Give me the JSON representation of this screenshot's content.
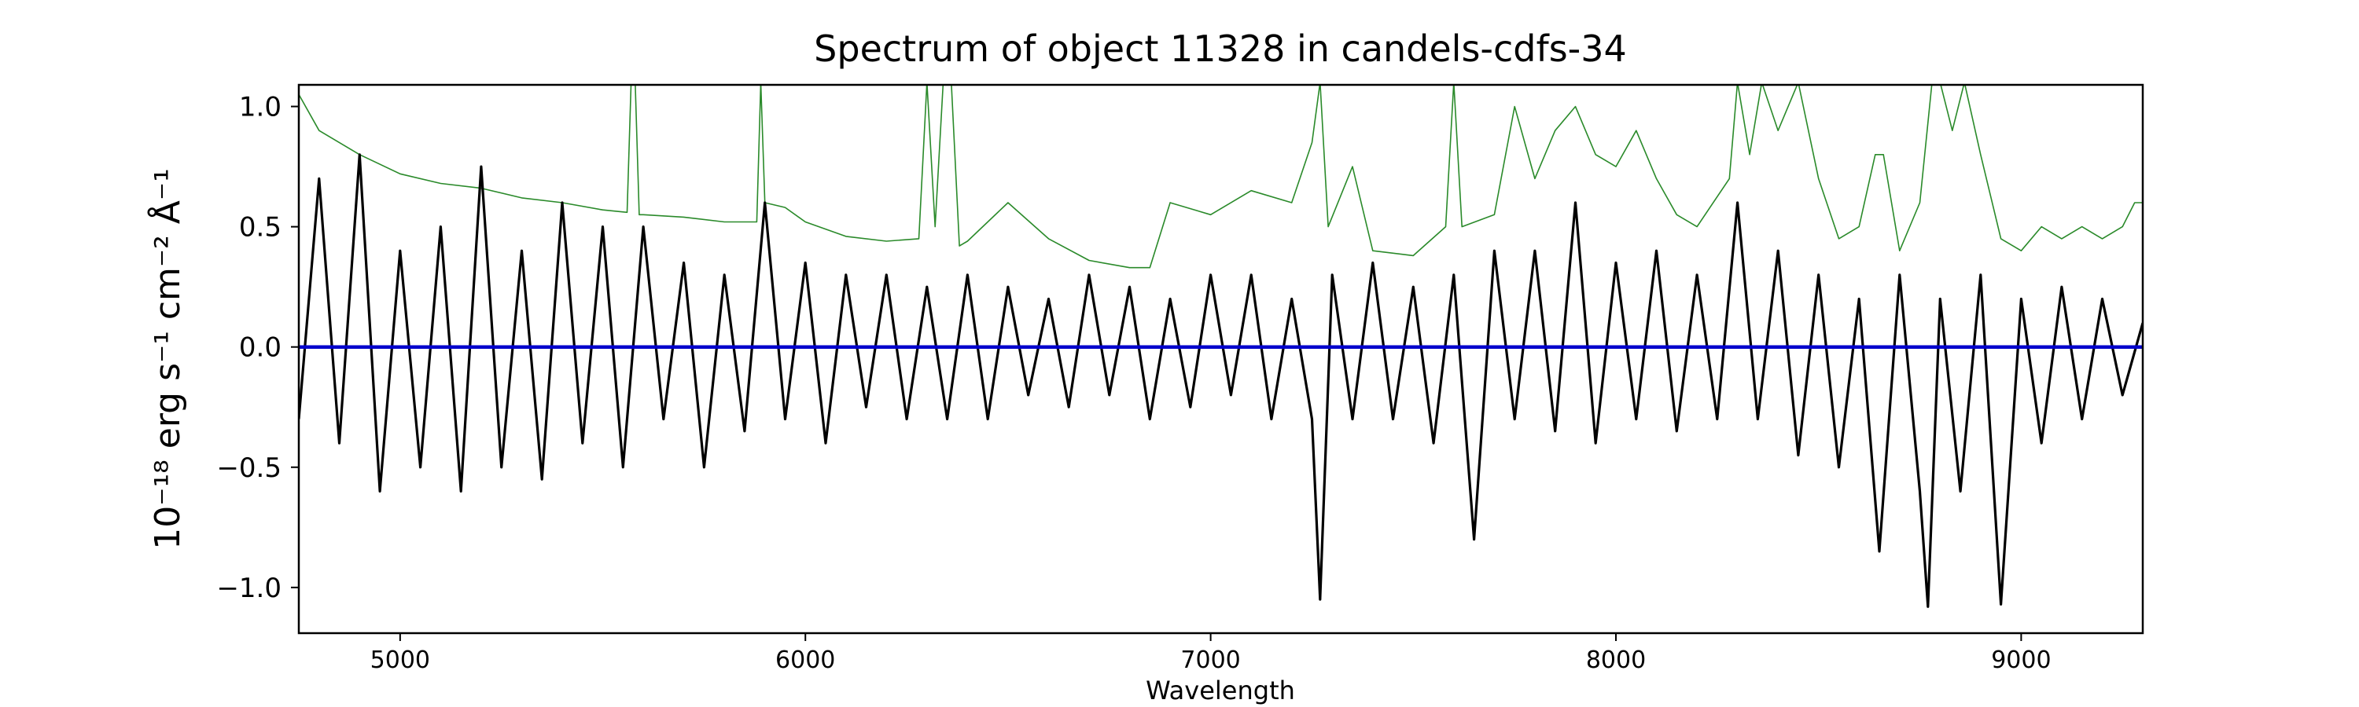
{
  "chart_data": {
    "type": "line",
    "title": "Spectrum of object 11328 in candels-cdfs-34",
    "xlabel": "Wavelength",
    "ylabel": "10⁻¹⁸ erg s⁻¹ cm⁻² Å⁻¹",
    "xlim": [
      4750,
      9300
    ],
    "ylim": [
      -1.19,
      1.09
    ],
    "xticks": [
      5000,
      6000,
      7000,
      8000,
      9000
    ],
    "yticks": [
      -1.0,
      -0.5,
      0.0,
      0.5,
      1.0
    ],
    "xtick_labels": [
      "5000",
      "6000",
      "7000",
      "8000",
      "9000"
    ],
    "ytick_labels": [
      "−1.0",
      "−0.5",
      "0.0",
      "0.5",
      "1.0"
    ],
    "grid": false,
    "series": [
      {
        "role": "flux",
        "color": "#000000",
        "x": [
          4750,
          4800,
          4850,
          4900,
          4950,
          5000,
          5050,
          5100,
          5150,
          5200,
          5250,
          5300,
          5350,
          5400,
          5450,
          5500,
          5550,
          5600,
          5650,
          5700,
          5750,
          5800,
          5850,
          5900,
          5950,
          6000,
          6050,
          6100,
          6150,
          6200,
          6250,
          6300,
          6350,
          6400,
          6450,
          6500,
          6550,
          6600,
          6650,
          6700,
          6750,
          6800,
          6850,
          6900,
          6950,
          7000,
          7050,
          7100,
          7150,
          7200,
          7250,
          7270,
          7300,
          7350,
          7400,
          7450,
          7500,
          7550,
          7600,
          7650,
          7700,
          7750,
          7800,
          7850,
          7900,
          7950,
          8000,
          8050,
          8100,
          8150,
          8200,
          8250,
          8300,
          8350,
          8400,
          8450,
          8500,
          8550,
          8600,
          8650,
          8700,
          8750,
          8770,
          8800,
          8850,
          8900,
          8950,
          9000,
          9050,
          9100,
          9150,
          9200,
          9250,
          9300
        ],
        "y": [
          -0.3,
          0.7,
          -0.4,
          0.8,
          -0.6,
          0.4,
          -0.5,
          0.5,
          -0.6,
          0.75,
          -0.5,
          0.4,
          -0.55,
          0.6,
          -0.4,
          0.5,
          -0.5,
          0.5,
          -0.3,
          0.35,
          -0.5,
          0.3,
          -0.35,
          0.6,
          -0.3,
          0.35,
          -0.4,
          0.3,
          -0.25,
          0.3,
          -0.3,
          0.25,
          -0.3,
          0.3,
          -0.3,
          0.25,
          -0.2,
          0.2,
          -0.25,
          0.3,
          -0.2,
          0.25,
          -0.3,
          0.2,
          -0.25,
          0.3,
          -0.2,
          0.3,
          -0.3,
          0.2,
          -0.3,
          -1.05,
          0.3,
          -0.3,
          0.35,
          -0.3,
          0.25,
          -0.4,
          0.3,
          -0.8,
          0.4,
          -0.3,
          0.4,
          -0.35,
          0.6,
          -0.4,
          0.35,
          -0.3,
          0.4,
          -0.35,
          0.3,
          -0.3,
          0.6,
          -0.3,
          0.4,
          -0.45,
          0.3,
          -0.5,
          0.2,
          -0.85,
          0.3,
          -0.6,
          -1.08,
          0.2,
          -0.6,
          0.3,
          -1.07,
          0.2,
          -0.4,
          0.25,
          -0.3,
          0.2,
          -0.2,
          0.1
        ]
      },
      {
        "role": "zero",
        "color": "#0000cc",
        "x": [
          4750,
          9300
        ],
        "y": [
          0.0,
          0.0
        ]
      },
      {
        "role": "error",
        "color": "#2a8a2a",
        "x": [
          4750,
          4800,
          4900,
          5000,
          5100,
          5200,
          5300,
          5400,
          5500,
          5560,
          5570,
          5580,
          5590,
          5600,
          5700,
          5800,
          5880,
          5890,
          5900,
          5950,
          6000,
          6100,
          6200,
          6280,
          6300,
          6320,
          6340,
          6360,
          6380,
          6400,
          6500,
          6600,
          6700,
          6800,
          6850,
          6900,
          7000,
          7100,
          7200,
          7250,
          7270,
          7290,
          7350,
          7400,
          7500,
          7580,
          7600,
          7620,
          7700,
          7750,
          7800,
          7850,
          7900,
          7950,
          8000,
          8050,
          8100,
          8150,
          8200,
          8280,
          8300,
          8330,
          8360,
          8400,
          8450,
          8500,
          8550,
          8600,
          8640,
          8660,
          8700,
          8750,
          8780,
          8800,
          8830,
          8860,
          8900,
          8950,
          9000,
          9050,
          9100,
          9150,
          9200,
          9250,
          9280,
          9300
        ],
        "y": [
          1.05,
          0.9,
          0.8,
          0.72,
          0.68,
          0.66,
          0.62,
          0.6,
          0.57,
          0.56,
          1.1,
          1.1,
          0.55,
          0.55,
          0.54,
          0.52,
          0.52,
          1.1,
          0.6,
          0.58,
          0.52,
          0.46,
          0.44,
          0.45,
          1.1,
          0.5,
          1.1,
          1.1,
          0.42,
          0.44,
          0.6,
          0.45,
          0.36,
          0.33,
          0.33,
          0.6,
          0.55,
          0.65,
          0.6,
          0.85,
          1.1,
          0.5,
          0.75,
          0.4,
          0.38,
          0.5,
          1.1,
          0.5,
          0.55,
          1.0,
          0.7,
          0.9,
          1.0,
          0.8,
          0.75,
          0.9,
          0.7,
          0.55,
          0.5,
          0.7,
          1.1,
          0.8,
          1.1,
          0.9,
          1.1,
          0.7,
          0.45,
          0.5,
          0.8,
          0.8,
          0.4,
          0.6,
          1.1,
          1.1,
          0.9,
          1.1,
          0.8,
          0.45,
          0.4,
          0.5,
          0.45,
          0.5,
          0.45,
          0.5,
          0.6,
          0.6
        ]
      }
    ]
  }
}
